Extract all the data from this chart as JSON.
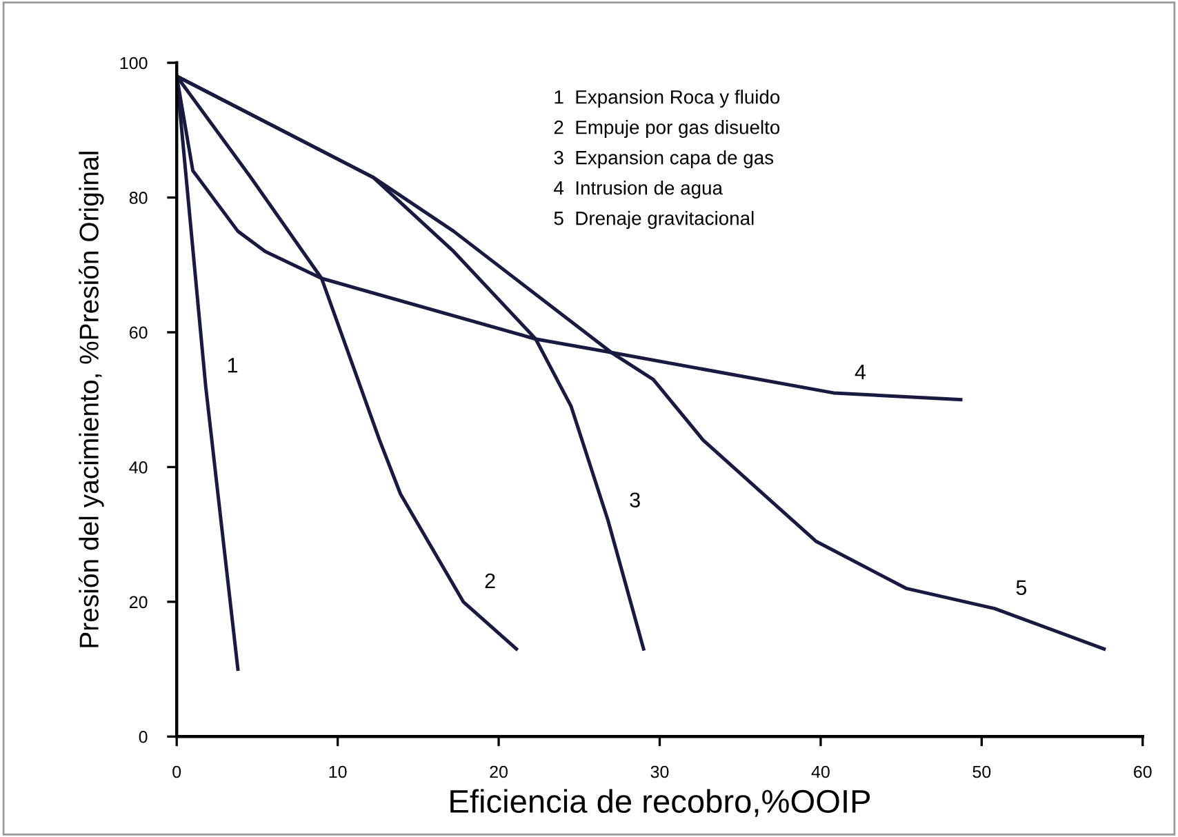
{
  "chart_data": {
    "type": "line",
    "xlabel": "Eficiencia de recobro,%OOIP",
    "ylabel": "Presión del yacimiento, %Presión Original",
    "xlim": [
      0,
      60
    ],
    "ylim": [
      0,
      100
    ],
    "xticks": [
      0,
      10,
      20,
      30,
      40,
      50,
      60
    ],
    "yticks": [
      0,
      20,
      40,
      60,
      80,
      100
    ],
    "grid": false,
    "legend": false,
    "marker": "none",
    "line_style": "solid",
    "series": [
      {
        "name": "1",
        "color": "#1a1a40",
        "x": [
          0,
          1.8,
          3.8
        ],
        "values": [
          98,
          52,
          10
        ]
      },
      {
        "name": "2",
        "color": "#1a1a40",
        "x": [
          0,
          4.6,
          9,
          12.6,
          13.9,
          17.8,
          21.1
        ],
        "values": [
          98,
          83,
          68,
          44,
          36,
          20,
          13
        ]
      },
      {
        "name": "3",
        "color": "#1a1a40",
        "x": [
          0,
          12.2,
          17.2,
          22.3,
          24.5,
          26.8,
          29
        ],
        "values": [
          98,
          83,
          72,
          59,
          49,
          32,
          13
        ]
      },
      {
        "name": "4",
        "color": "#1a1a40",
        "x": [
          0,
          1,
          3.8,
          5.5,
          9,
          22.3,
          27,
          40.8,
          48.7
        ],
        "values": [
          98,
          84,
          75,
          72,
          68,
          59,
          57,
          51,
          50
        ]
      },
      {
        "name": "5",
        "color": "#1a1a40",
        "x": [
          0,
          12.2,
          17.2,
          27,
          29.6,
          32.7,
          39.7,
          45.3,
          50.8,
          57.6
        ],
        "values": [
          98,
          83,
          75,
          57,
          53,
          44,
          29,
          22,
          19,
          13
        ]
      }
    ],
    "annotations": [
      "1  Expansion Roca y fluido",
      "2  Empuje por gas disuelto",
      "3  Expansion capa de gas",
      "4  Intrusion de agua",
      "5  Drenaje gravitacional"
    ]
  }
}
